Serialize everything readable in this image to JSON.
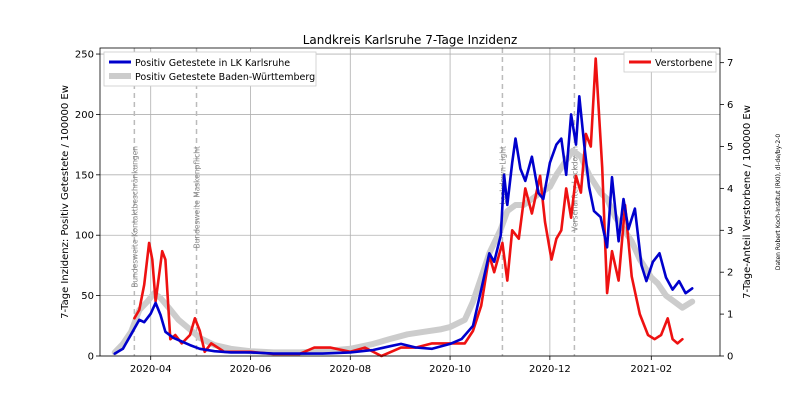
{
  "chart_data": {
    "type": "line",
    "title": "Landkreis Karlsruhe 7-Tage Inzidenz",
    "ylabel": "7-Tage Inzidenz: Positiv Getestete / 100000 Ew",
    "ylabel_right": "7-Tage-Anteil Verstorbene / 100000 Ew",
    "xlabel": "",
    "ylim": [
      0,
      255
    ],
    "ylim_right": [
      0,
      7.35
    ],
    "yticks": [
      0,
      50,
      100,
      150,
      200,
      250
    ],
    "yticks_right": [
      0,
      1,
      2,
      3,
      4,
      5,
      6,
      7
    ],
    "xlim": [
      "2020-03-01",
      "2021-03-15"
    ],
    "xticks": [
      {
        "label": "2020-04",
        "date": "2020-04-01"
      },
      {
        "label": "2020-06",
        "date": "2020-06-01"
      },
      {
        "label": "2020-08",
        "date": "2020-08-01"
      },
      {
        "label": "2020-10",
        "date": "2020-10-01"
      },
      {
        "label": "2020-12",
        "date": "2020-12-01"
      },
      {
        "label": "2021-02",
        "date": "2021-02-01"
      }
    ],
    "grid": true,
    "legend_left": "upper-left",
    "legend_right": "upper-right",
    "annotations": [
      {
        "text": "Bundesweite Kontaktbeschränkungen",
        "date": "2020-03-22"
      },
      {
        "text": "Bundesweite Maskenpflicht",
        "date": "2020-04-29"
      },
      {
        "text": "Lockdown Light",
        "date": "2020-11-02"
      },
      {
        "text": "Verschärfter Lockdown",
        "date": "2020-12-16"
      }
    ],
    "credit": "Daten Robert Koch-Institut (RKI), dl-de/by-2-0",
    "series": [
      {
        "name": "Positiv Getestete in LK Karlsruhe",
        "axis": "left",
        "color": "#0000cc",
        "x": [
          "2020-03-10",
          "2020-03-15",
          "2020-03-20",
          "2020-03-25",
          "2020-03-28",
          "2020-04-01",
          "2020-04-04",
          "2020-04-07",
          "2020-04-10",
          "2020-04-15",
          "2020-04-20",
          "2020-04-25",
          "2020-05-01",
          "2020-05-10",
          "2020-05-20",
          "2020-06-01",
          "2020-06-15",
          "2020-07-01",
          "2020-07-15",
          "2020-08-01",
          "2020-08-15",
          "2020-08-25",
          "2020-09-01",
          "2020-09-10",
          "2020-09-20",
          "2020-10-01",
          "2020-10-08",
          "2020-10-15",
          "2020-10-20",
          "2020-10-25",
          "2020-10-28",
          "2020-11-01",
          "2020-11-03",
          "2020-11-05",
          "2020-11-08",
          "2020-11-10",
          "2020-11-13",
          "2020-11-16",
          "2020-11-20",
          "2020-11-24",
          "2020-11-27",
          "2020-12-01",
          "2020-12-05",
          "2020-12-08",
          "2020-12-11",
          "2020-12-14",
          "2020-12-17",
          "2020-12-19",
          "2020-12-22",
          "2020-12-25",
          "2020-12-28",
          "2021-01-01",
          "2021-01-05",
          "2021-01-08",
          "2021-01-12",
          "2021-01-15",
          "2021-01-18",
          "2021-01-22",
          "2021-01-26",
          "2021-01-29",
          "2021-02-02",
          "2021-02-06",
          "2021-02-10",
          "2021-02-14",
          "2021-02-18",
          "2021-02-22",
          "2021-02-26"
        ],
        "values": [
          2,
          6,
          18,
          30,
          28,
          35,
          44,
          34,
          20,
          15,
          12,
          9,
          6,
          4,
          3,
          3,
          2,
          2,
          2,
          3,
          5,
          8,
          10,
          7,
          6,
          10,
          14,
          25,
          55,
          85,
          78,
          100,
          150,
          125,
          160,
          180,
          155,
          145,
          165,
          135,
          130,
          160,
          175,
          180,
          150,
          200,
          175,
          215,
          175,
          140,
          120,
          115,
          90,
          148,
          95,
          130,
          105,
          122,
          75,
          62,
          78,
          85,
          65,
          55,
          62,
          52,
          56
        ]
      },
      {
        "name": "Positiv Getestete Baden-Württemberg",
        "axis": "left",
        "color": "#cccccc",
        "x": [
          "2020-03-10",
          "2020-03-15",
          "2020-03-20",
          "2020-03-25",
          "2020-03-30",
          "2020-04-03",
          "2020-04-07",
          "2020-04-12",
          "2020-04-18",
          "2020-04-25",
          "2020-05-01",
          "2020-05-10",
          "2020-05-20",
          "2020-06-01",
          "2020-06-15",
          "2020-07-01",
          "2020-07-15",
          "2020-08-01",
          "2020-08-15",
          "2020-08-25",
          "2020-09-05",
          "2020-09-15",
          "2020-09-25",
          "2020-10-01",
          "2020-10-10",
          "2020-10-15",
          "2020-10-20",
          "2020-10-25",
          "2020-11-01",
          "2020-11-05",
          "2020-11-10",
          "2020-11-15",
          "2020-11-20",
          "2020-11-25",
          "2020-12-01",
          "2020-12-05",
          "2020-12-10",
          "2020-12-15",
          "2020-12-20",
          "2020-12-25",
          "2021-01-01",
          "2021-01-05",
          "2021-01-10",
          "2021-01-15",
          "2021-01-20",
          "2021-01-25",
          "2021-02-01",
          "2021-02-05",
          "2021-02-10",
          "2021-02-15",
          "2021-02-20",
          "2021-02-26"
        ],
        "values": [
          3,
          10,
          20,
          38,
          45,
          52,
          48,
          40,
          30,
          22,
          15,
          9,
          6,
          4,
          3,
          3,
          4,
          6,
          10,
          14,
          18,
          20,
          22,
          24,
          30,
          45,
          65,
          85,
          105,
          120,
          125,
          125,
          130,
          135,
          140,
          150,
          160,
          170,
          165,
          150,
          135,
          130,
          115,
          105,
          95,
          80,
          65,
          60,
          50,
          45,
          40,
          45
        ]
      },
      {
        "name": "Verstorbene",
        "axis": "right",
        "color": "#ee1111",
        "x": [
          "2020-03-22",
          "2020-03-25",
          "2020-03-28",
          "2020-03-31",
          "2020-04-02",
          "2020-04-04",
          "2020-04-06",
          "2020-04-08",
          "2020-04-10",
          "2020-04-13",
          "2020-04-16",
          "2020-04-20",
          "2020-04-25",
          "2020-04-28",
          "2020-05-01",
          "2020-05-04",
          "2020-05-08",
          "2020-05-12",
          "2020-05-16",
          "2020-05-22",
          "2020-06-01",
          "2020-06-15",
          "2020-07-01",
          "2020-07-10",
          "2020-07-20",
          "2020-08-01",
          "2020-08-10",
          "2020-08-20",
          "2020-09-01",
          "2020-09-10",
          "2020-09-20",
          "2020-10-01",
          "2020-10-10",
          "2020-10-15",
          "2020-10-20",
          "2020-10-25",
          "2020-10-28",
          "2020-11-02",
          "2020-11-05",
          "2020-11-08",
          "2020-11-12",
          "2020-11-16",
          "2020-11-20",
          "2020-11-25",
          "2020-11-28",
          "2020-12-02",
          "2020-12-05",
          "2020-12-08",
          "2020-12-11",
          "2020-12-14",
          "2020-12-17",
          "2020-12-20",
          "2020-12-23",
          "2020-12-26",
          "2020-12-29",
          "2021-01-02",
          "2021-01-05",
          "2021-01-08",
          "2021-01-12",
          "2021-01-16",
          "2021-01-20",
          "2021-01-25",
          "2021-01-30",
          "2021-02-03",
          "2021-02-07",
          "2021-02-11",
          "2021-02-14",
          "2021-02-17",
          "2021-02-20"
        ],
        "values": [
          0.9,
          1.1,
          1.7,
          2.7,
          2.3,
          1.3,
          1.9,
          2.5,
          2.3,
          0.4,
          0.5,
          0.3,
          0.5,
          0.9,
          0.6,
          0.1,
          0.3,
          0.2,
          0.1,
          0.1,
          0.1,
          0.05,
          0.05,
          0.2,
          0.2,
          0.1,
          0.2,
          0.0,
          0.2,
          0.2,
          0.3,
          0.3,
          0.3,
          0.6,
          1.2,
          2.4,
          2.0,
          2.7,
          1.8,
          3.0,
          2.8,
          4.0,
          3.4,
          4.3,
          3.2,
          2.3,
          2.8,
          3.0,
          4.0,
          3.3,
          4.3,
          3.9,
          5.3,
          5.0,
          7.1,
          4.5,
          1.5,
          2.5,
          1.8,
          3.6,
          1.9,
          1.0,
          0.5,
          0.4,
          0.5,
          0.9,
          0.4,
          0.3,
          0.4
        ]
      }
    ]
  }
}
